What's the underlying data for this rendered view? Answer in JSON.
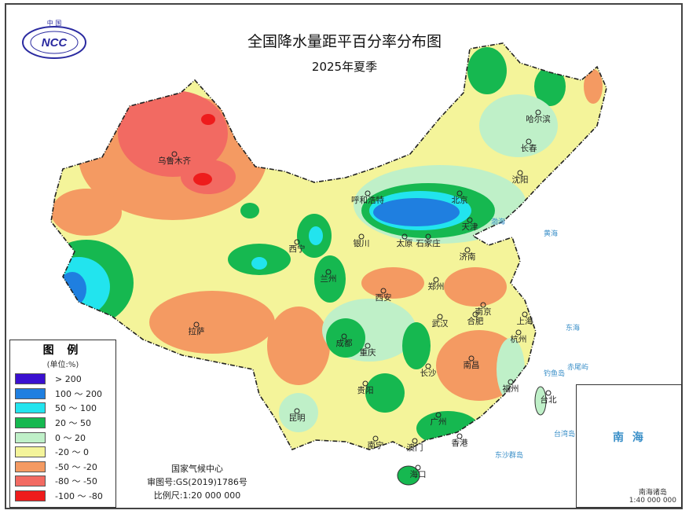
{
  "title": "全国降水量距平百分率分布图",
  "subtitle": "2025年夏季",
  "logo": {
    "text": "NCC",
    "top_text": "中 国"
  },
  "legend": {
    "title": "图 例",
    "unit": "(单位:%)",
    "items": [
      {
        "label": "> 200",
        "color": "#3a10d0"
      },
      {
        "label": "100 ～ 200",
        "color": "#1f7fe0"
      },
      {
        "label": "50 ～ 100",
        "color": "#22e4ee"
      },
      {
        "label": "20 ～ 50",
        "color": "#16b850"
      },
      {
        "label": "0 ～ 20",
        "color": "#bff0c8"
      },
      {
        "label": "-20 ～ 0",
        "color": "#f4f49a"
      },
      {
        "label": "-50 ～ -20",
        "color": "#f49a62"
      },
      {
        "label": "-80 ～ -50",
        "color": "#f26a62"
      },
      {
        "label": "-100 ～ -80",
        "color": "#ee1c1c"
      }
    ]
  },
  "credit": {
    "org": "国家气候中心",
    "review": "审图号:GS(2019)1786号",
    "scale": "比例尺:1:20 000 000"
  },
  "inset": {
    "sea": "南 海",
    "caption": "南海诸岛",
    "scale": "1:40 000 000"
  },
  "cities": [
    "乌鲁木齐",
    "哈尔滨",
    "长春",
    "沈阳",
    "呼和浩特",
    "北京",
    "天津",
    "石家庄",
    "太原",
    "银川",
    "西宁",
    "兰州",
    "济南",
    "郑州",
    "西安",
    "南京",
    "合肥",
    "上海",
    "武汉",
    "杭州",
    "成都",
    "重庆",
    "拉萨",
    "长沙",
    "南昌",
    "贵阳",
    "福州",
    "台北",
    "昆明",
    "广州",
    "南宁",
    "澳门",
    "香港",
    "海口"
  ],
  "seas": [
    "渤海",
    "黄海",
    "东海",
    "台湾岛",
    "赤尾屿",
    "钓鱼岛",
    "东沙群岛"
  ]
}
